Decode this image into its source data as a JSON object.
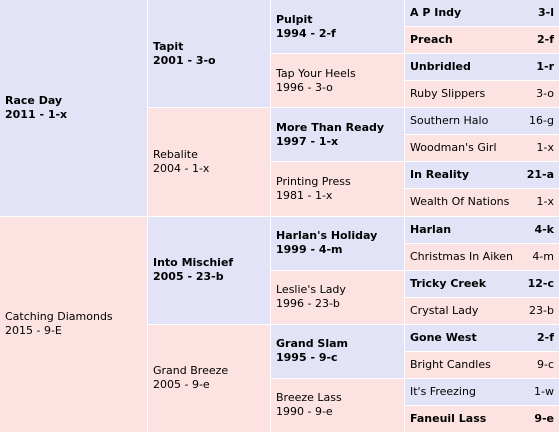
{
  "generations": [
    [
      {
        "name": "Race Day",
        "info": "2011 - 1-x"
      },
      {
        "name": "Catching Diamonds",
        "info": "2015 - 9-E"
      }
    ],
    [
      {
        "name": "Tapit",
        "info": "2001 - 3-o"
      },
      {
        "name": "Rebalite",
        "info": "2004 - 1-x"
      },
      {
        "name": "Into Mischief",
        "info": "2005 - 23-b"
      },
      {
        "name": "Grand Breeze",
        "info": "2005 - 9-e"
      }
    ],
    [
      {
        "name": "Pulpit",
        "info": "1994 - 2-f"
      },
      {
        "name": "Tap Your Heels",
        "info": "1996 - 3-o"
      },
      {
        "name": "More Than Ready",
        "info": "1997 - 1-x"
      },
      {
        "name": "Printing Press",
        "info": "1981 - 1-x"
      },
      {
        "name": "Harlan's Holiday",
        "info": "1999 - 4-m"
      },
      {
        "name": "Leslie's Lady",
        "info": "1996 - 23-b"
      },
      {
        "name": "Grand Slam",
        "info": "1995 - 9-c"
      },
      {
        "name": "Breeze Lass",
        "info": "1990 - 9-e"
      }
    ],
    [
      {
        "name": "A P Indy",
        "info": "3-l"
      },
      {
        "name": "Preach",
        "info": "2-f"
      },
      {
        "name": "Unbridled",
        "info": "1-r"
      },
      {
        "name": "Ruby Slippers",
        "info": "3-o"
      },
      {
        "name": "Southern Halo",
        "info": "16-g"
      },
      {
        "name": "Woodman's Girl",
        "info": "1-x"
      },
      {
        "name": "In Reality",
        "info": "21-a"
      },
      {
        "name": "Wealth Of Nations",
        "info": "1-x"
      },
      {
        "name": "Harlan",
        "info": "4-k"
      },
      {
        "name": "Christmas In Aiken",
        "info": "4-m"
      },
      {
        "name": "Tricky Creek",
        "info": "12-c"
      },
      {
        "name": "Crystal Lady",
        "info": "23-b"
      },
      {
        "name": "Gone West",
        "info": "2-f"
      },
      {
        "name": "Bright Candles",
        "info": "9-c"
      },
      {
        "name": "It's Freezing",
        "info": "1-w"
      },
      {
        "name": "Faneuil Lass",
        "info": "9-e"
      }
    ]
  ]
}
